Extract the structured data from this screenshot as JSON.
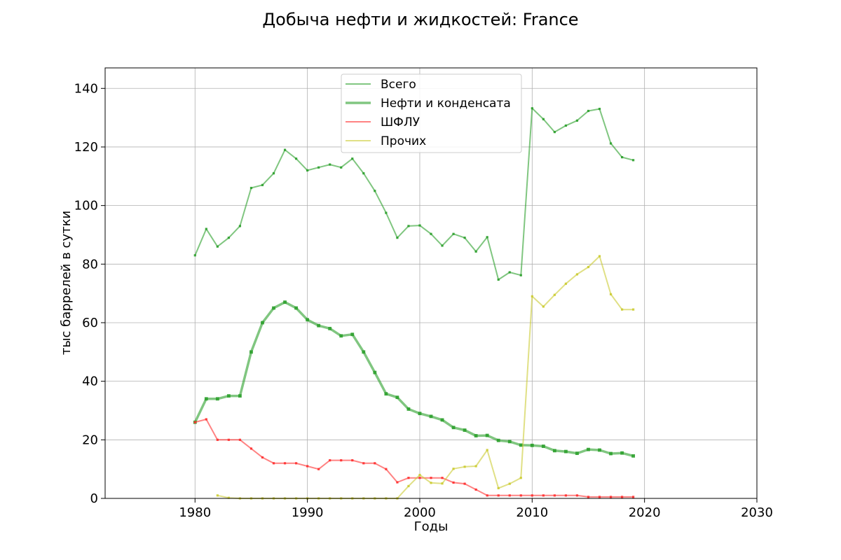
{
  "chart_data": {
    "type": "line",
    "title": "Добыча нефти и жидкостей: France",
    "xlabel": "Годы",
    "ylabel": "тыс баррелей в сутки",
    "xlim": [
      1972,
      2030
    ],
    "ylim": [
      0,
      147
    ],
    "xticks": [
      1980,
      1990,
      2000,
      2010,
      2020,
      2030
    ],
    "yticks": [
      0,
      20,
      40,
      60,
      80,
      100,
      120,
      140
    ],
    "grid": true,
    "legend_position": "top-center",
    "series": [
      {
        "name": "Всего",
        "color": "#2ca02c",
        "style": "thin",
        "x": [
          1980,
          1981,
          1982,
          1983,
          1984,
          1985,
          1986,
          1987,
          1988,
          1989,
          1990,
          1991,
          1992,
          1993,
          1994,
          1995,
          1996,
          1997,
          1998,
          1999,
          2000,
          2001,
          2002,
          2003,
          2004,
          2005,
          2006,
          2007,
          2008,
          2009,
          2010,
          2011,
          2012,
          2013,
          2014,
          2015,
          2016,
          2017,
          2018,
          2019
        ],
        "y": [
          83,
          92,
          86,
          89,
          93,
          106,
          107,
          111,
          119,
          116,
          112,
          113,
          114,
          113,
          116,
          111,
          105,
          97.5,
          89,
          93,
          93.2,
          90.3,
          86.3,
          90.3,
          89,
          84.3,
          89.2,
          74.7,
          77.2,
          76.2,
          133.2,
          129.5,
          125.1,
          127.3,
          129,
          132.3,
          133,
          121.2,
          116.5,
          115.5
        ]
      },
      {
        "name": "Нефти и конденсата",
        "color": "#2ca02c",
        "style": "thick",
        "x": [
          1980,
          1981,
          1982,
          1983,
          1984,
          1985,
          1986,
          1987,
          1988,
          1989,
          1990,
          1991,
          1992,
          1993,
          1994,
          1995,
          1996,
          1997,
          1998,
          1999,
          2000,
          2001,
          2002,
          2003,
          2004,
          2005,
          2006,
          2007,
          2008,
          2009,
          2010,
          2011,
          2012,
          2013,
          2014,
          2015,
          2016,
          2017,
          2018,
          2019
        ],
        "y": [
          26,
          34,
          34,
          35,
          35,
          50,
          60,
          65,
          67,
          65,
          61,
          59,
          58,
          55.5,
          56,
          50,
          43,
          35.7,
          34.5,
          30.5,
          29,
          28,
          26.8,
          24.2,
          23.3,
          21.4,
          21.5,
          19.8,
          19.4,
          18.2,
          18.1,
          17.8,
          16.3,
          16,
          15.4,
          16.7,
          16.5,
          15.3,
          15.5,
          14.5
        ]
      },
      {
        "name": "ШФЛУ",
        "color": "#ff3030",
        "style": "thin",
        "x": [
          1980,
          1981,
          1982,
          1983,
          1984,
          1985,
          1986,
          1987,
          1988,
          1989,
          1990,
          1991,
          1992,
          1993,
          1994,
          1995,
          1996,
          1997,
          1998,
          1999,
          2000,
          2001,
          2002,
          2003,
          2004,
          2005,
          2006,
          2007,
          2008,
          2009,
          2010,
          2011,
          2012,
          2013,
          2014,
          2015,
          2016,
          2017,
          2018,
          2019
        ],
        "y": [
          26,
          27,
          20,
          20,
          20,
          17,
          14,
          12,
          12,
          12,
          11,
          10,
          13,
          13,
          13,
          12,
          12,
          10,
          5.5,
          7,
          7,
          7,
          7,
          5.4,
          5,
          3,
          1,
          1,
          1,
          1,
          1,
          1,
          1,
          1,
          1,
          0.5,
          0.5,
          0.5,
          0.5,
          0.5
        ]
      },
      {
        "name": "Прочих",
        "color": "#cccc33",
        "style": "thin",
        "x": [
          1982,
          1983,
          1984,
          1985,
          1986,
          1987,
          1988,
          1989,
          1990,
          1991,
          1992,
          1993,
          1994,
          1995,
          1996,
          1997,
          1998,
          1999,
          2000,
          2001,
          2002,
          2003,
          2004,
          2005,
          2006,
          2007,
          2008,
          2009,
          2010,
          2011,
          2012,
          2013,
          2014,
          2015,
          2016,
          2017,
          2018,
          2019
        ],
        "y": [
          1,
          0.2,
          0,
          0,
          0,
          0,
          0,
          0,
          0,
          0,
          0,
          0,
          0,
          0,
          0,
          0,
          0,
          4.2,
          8,
          5.3,
          5.1,
          10.1,
          10.8,
          11,
          16.5,
          3.5,
          5,
          7,
          69,
          65.5,
          69.5,
          73.3,
          76.5,
          79,
          82.7,
          69.7,
          64.5,
          64.5
        ]
      }
    ]
  }
}
